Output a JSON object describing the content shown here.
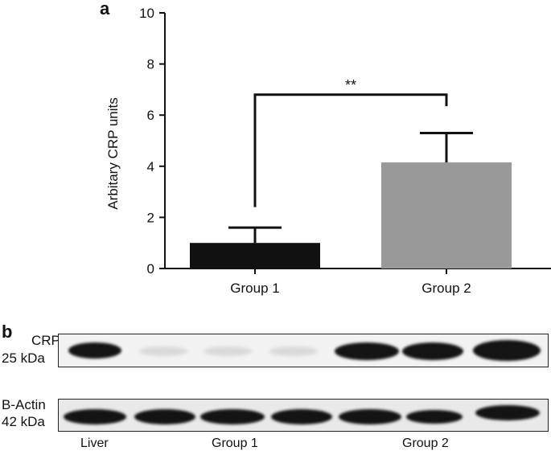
{
  "figure": {
    "panel_a_label": "a",
    "panel_b_label": "b"
  },
  "chart_data": {
    "type": "bar",
    "title": "",
    "xlabel": "",
    "ylabel": "Arbitary CRP units",
    "ylim": [
      0,
      10
    ],
    "yticks": [
      "0",
      "2",
      "4",
      "6",
      "8",
      "10"
    ],
    "categories": [
      "Group 1",
      "Group 2"
    ],
    "values": [
      1.0,
      4.15
    ],
    "errors": [
      0.6,
      1.15
    ],
    "bar_colors": [
      "#111111",
      "#999999"
    ],
    "grid": false,
    "legend": "none",
    "significance": {
      "between": [
        "Group 1",
        "Group 2"
      ],
      "label": "**"
    }
  },
  "blot": {
    "crp_label_line1": "CRP",
    "crp_label_line2": "25 kDa",
    "actin_label_line1": "B-Actin",
    "actin_label_line2": "42 kDa",
    "lane_groups": [
      "Liver",
      "Group 1",
      "Group 2"
    ]
  }
}
